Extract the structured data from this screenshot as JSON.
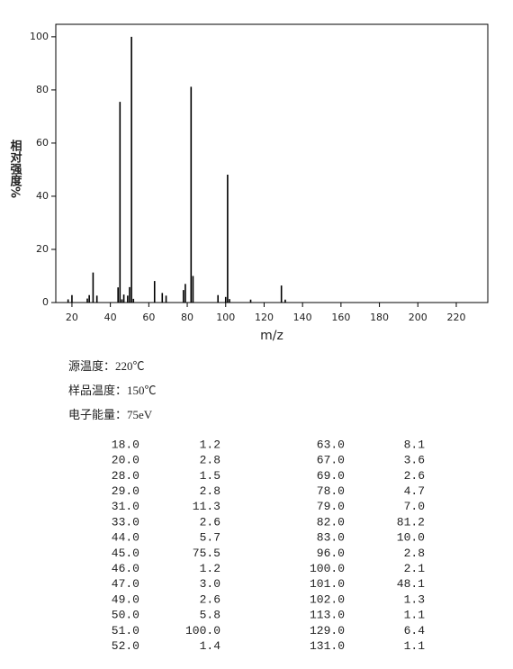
{
  "chart_data": {
    "type": "bar",
    "x_label": "m/z",
    "y_label": "相对强度%",
    "x": [
      18,
      20,
      28,
      29,
      31,
      33,
      44,
      45,
      46,
      47,
      49,
      50,
      51,
      52,
      63,
      67,
      69,
      78,
      79,
      82,
      83,
      96,
      100,
      101,
      102,
      113,
      129,
      131
    ],
    "values": [
      1.2,
      2.8,
      1.5,
      2.8,
      11.3,
      2.6,
      5.7,
      75.5,
      1.2,
      3.0,
      2.6,
      5.8,
      100.0,
      1.4,
      8.1,
      3.6,
      2.6,
      4.7,
      7.0,
      81.2,
      10.0,
      2.8,
      2.1,
      48.1,
      1.3,
      1.1,
      6.4,
      1.1
    ],
    "color": "#000000",
    "xlim": [
      11.6,
      236.4
    ],
    "xticks": [
      20,
      40,
      60,
      80,
      100,
      120,
      140,
      160,
      180,
      200,
      220
    ],
    "ylim": [
      0,
      104.7
    ],
    "yticks": [
      0,
      20,
      40,
      60,
      80,
      100
    ]
  },
  "info": [
    "源温度：220℃",
    "样品温度：150℃",
    "电子能量：75eV"
  ],
  "table": {
    "rows": [
      [
        "18.0",
        "1.2",
        "63.0",
        "8.1"
      ],
      [
        "20.0",
        "2.8",
        "67.0",
        "3.6"
      ],
      [
        "28.0",
        "1.5",
        "69.0",
        "2.6"
      ],
      [
        "29.0",
        "2.8",
        "78.0",
        "4.7"
      ],
      [
        "31.0",
        "11.3",
        "79.0",
        "7.0"
      ],
      [
        "33.0",
        "2.6",
        "82.0",
        "81.2"
      ],
      [
        "44.0",
        "5.7",
        "83.0",
        "10.0"
      ],
      [
        "45.0",
        "75.5",
        "96.0",
        "2.8"
      ],
      [
        "46.0",
        "1.2",
        "100.0",
        "2.1"
      ],
      [
        "47.0",
        "3.0",
        "101.0",
        "48.1"
      ],
      [
        "49.0",
        "2.6",
        "102.0",
        "1.3"
      ],
      [
        "50.0",
        "5.8",
        "113.0",
        "1.1"
      ],
      [
        "51.0",
        "100.0",
        "129.0",
        "6.4"
      ],
      [
        "52.0",
        "1.4",
        "131.0",
        "1.1"
      ]
    ]
  }
}
